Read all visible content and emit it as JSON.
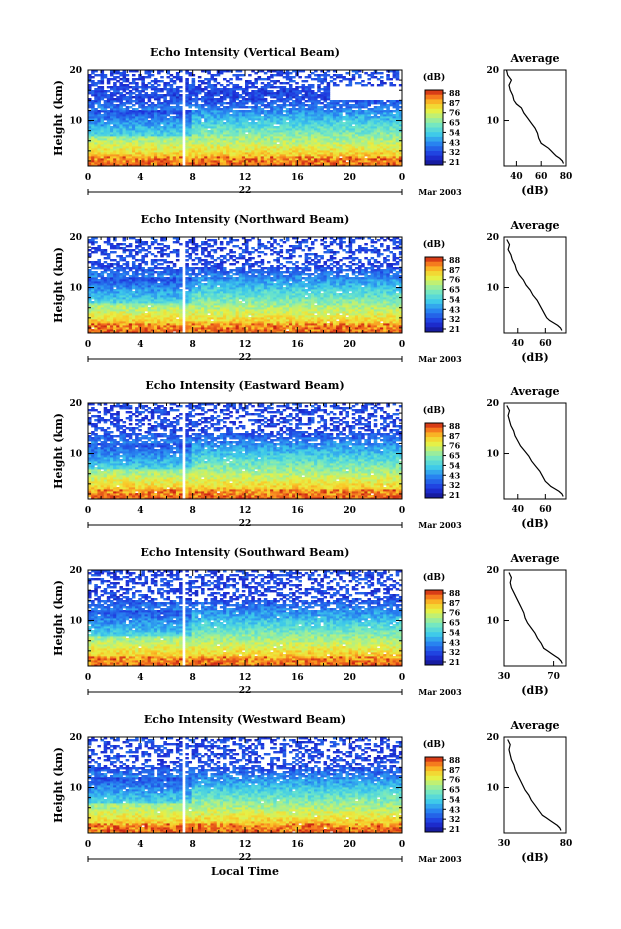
{
  "figure": {
    "xlabel": "Local Time",
    "date_label": "22",
    "month_label": "Mar 2003"
  },
  "chart_data": [
    {
      "type": "heatmap",
      "title": "Echo Intensity (Vertical Beam)",
      "xlabel": "",
      "ylabel": "Height (km)",
      "x_ticks": [
        "0",
        "4",
        "8",
        "12",
        "16",
        "20",
        "0"
      ],
      "y_ticks": [
        "10",
        "20"
      ],
      "xlim": [
        0,
        24
      ],
      "ylim": [
        1,
        20
      ],
      "colorbar": {
        "label": "(dB)",
        "ticks": [
          "88",
          "87",
          "76",
          "65",
          "54",
          "43",
          "32",
          "21"
        ],
        "range": [
          21,
          98
        ]
      },
      "gap_hour": 7.2,
      "profile": {
        "title": "Average",
        "xlabel": "(dB)",
        "x_ticks": [
          "40",
          "60",
          "80"
        ],
        "xlim": [
          30,
          80
        ],
        "y_ticks": [
          "10",
          "20"
        ],
        "points": [
          [
            78,
            1.5
          ],
          [
            77,
            2
          ],
          [
            75,
            2.5
          ],
          [
            72,
            3
          ],
          [
            70,
            3.5
          ],
          [
            68,
            4
          ],
          [
            66,
            4.5
          ],
          [
            60,
            5.5
          ],
          [
            58,
            6.5
          ],
          [
            57,
            7.5
          ],
          [
            55,
            8.5
          ],
          [
            52,
            9.5
          ],
          [
            49,
            10.5
          ],
          [
            46,
            11.5
          ],
          [
            44,
            12.5
          ],
          [
            40,
            13.3
          ],
          [
            38,
            14
          ],
          [
            37,
            15
          ],
          [
            35,
            16
          ],
          [
            34,
            17
          ],
          [
            36,
            18
          ],
          [
            33,
            19
          ],
          [
            32,
            20
          ]
        ]
      }
    },
    {
      "type": "heatmap",
      "title": "Echo Intensity (Northward Beam)",
      "xlabel": "",
      "ylabel": "Height (km)",
      "x_ticks": [
        "0",
        "4",
        "8",
        "12",
        "16",
        "20",
        "0"
      ],
      "y_ticks": [
        "10",
        "20"
      ],
      "xlim": [
        0,
        24
      ],
      "ylim": [
        1,
        20
      ],
      "colorbar": {
        "label": "(dB)",
        "ticks": [
          "88",
          "87",
          "76",
          "65",
          "54",
          "43",
          "32",
          "21"
        ],
        "range": [
          21,
          98
        ]
      },
      "gap_hour": 7.2,
      "profile": {
        "title": "Average",
        "xlabel": "(dB)",
        "x_ticks": [
          "40",
          "60"
        ],
        "xlim": [
          30,
          75
        ],
        "y_ticks": [
          "10",
          "20"
        ],
        "points": [
          [
            72,
            1.5
          ],
          [
            71,
            2
          ],
          [
            69,
            2.5
          ],
          [
            66,
            3
          ],
          [
            63,
            3.5
          ],
          [
            61,
            4
          ],
          [
            60,
            4.5
          ],
          [
            58,
            5.5
          ],
          [
            56,
            6.5
          ],
          [
            54,
            7.5
          ],
          [
            51,
            8.5
          ],
          [
            49,
            9.5
          ],
          [
            46,
            10.5
          ],
          [
            44,
            11.5
          ],
          [
            41,
            12.5
          ],
          [
            39,
            13.5
          ],
          [
            38,
            14.5
          ],
          [
            36,
            15.5
          ],
          [
            35,
            16.5
          ],
          [
            33,
            17.5
          ],
          [
            34,
            18.5
          ],
          [
            32,
            19.5
          ]
        ]
      }
    },
    {
      "type": "heatmap",
      "title": "Echo Intensity (Eastward Beam)",
      "xlabel": "",
      "ylabel": "Height (km)",
      "x_ticks": [
        "0",
        "4",
        "8",
        "12",
        "16",
        "20",
        "0"
      ],
      "y_ticks": [
        "10",
        "20"
      ],
      "xlim": [
        0,
        24
      ],
      "ylim": [
        1,
        20
      ],
      "colorbar": {
        "label": "(dB)",
        "ticks": [
          "88",
          "87",
          "76",
          "65",
          "54",
          "43",
          "32",
          "21"
        ],
        "range": [
          21,
          98
        ]
      },
      "gap_hour": 7.2,
      "profile": {
        "title": "Average",
        "xlabel": "(dB)",
        "x_ticks": [
          "40",
          "60"
        ],
        "xlim": [
          30,
          75
        ],
        "y_ticks": [
          "10",
          "20"
        ],
        "points": [
          [
            73,
            1.5
          ],
          [
            72,
            2
          ],
          [
            70,
            2.5
          ],
          [
            67,
            3
          ],
          [
            64,
            3.5
          ],
          [
            62,
            4
          ],
          [
            60,
            4.5
          ],
          [
            58,
            5.5
          ],
          [
            56,
            6.5
          ],
          [
            53,
            7.5
          ],
          [
            50,
            8.5
          ],
          [
            48,
            9.5
          ],
          [
            45,
            10.5
          ],
          [
            42,
            11.5
          ],
          [
            40,
            12.5
          ],
          [
            38,
            13.5
          ],
          [
            37,
            14.5
          ],
          [
            35,
            15.5
          ],
          [
            34,
            16.5
          ],
          [
            33,
            17.5
          ],
          [
            34,
            18.5
          ],
          [
            32,
            19.5
          ]
        ]
      }
    },
    {
      "type": "heatmap",
      "title": "Echo Intensity (Southward Beam)",
      "xlabel": "",
      "ylabel": "Height (km)",
      "x_ticks": [
        "0",
        "4",
        "8",
        "12",
        "16",
        "20",
        "0"
      ],
      "y_ticks": [
        "10",
        "20"
      ],
      "xlim": [
        0,
        24
      ],
      "ylim": [
        1,
        20
      ],
      "colorbar": {
        "label": "(dB)",
        "ticks": [
          "88",
          "87",
          "76",
          "65",
          "54",
          "43",
          "32",
          "21"
        ],
        "range": [
          21,
          98
        ]
      },
      "gap_hour": 7.2,
      "profile": {
        "title": "Average",
        "xlabel": "(dB)",
        "x_ticks": [
          "30",
          "70"
        ],
        "xlim": [
          30,
          80
        ],
        "y_ticks": [
          "10",
          "20"
        ],
        "points": [
          [
            77,
            1.5
          ],
          [
            76,
            2
          ],
          [
            74,
            2.5
          ],
          [
            71,
            3
          ],
          [
            68,
            3.5
          ],
          [
            65,
            4
          ],
          [
            62,
            4.5
          ],
          [
            60,
            5.5
          ],
          [
            57,
            6.5
          ],
          [
            55,
            7.5
          ],
          [
            52,
            8.5
          ],
          [
            49,
            9.5
          ],
          [
            47,
            10.5
          ],
          [
            46,
            11.5
          ],
          [
            44,
            12.5
          ],
          [
            42,
            13.5
          ],
          [
            40,
            14.5
          ],
          [
            38,
            15.5
          ],
          [
            36,
            16.5
          ],
          [
            35,
            17.5
          ],
          [
            36,
            18.5
          ],
          [
            34,
            19.5
          ]
        ]
      }
    },
    {
      "type": "heatmap",
      "title": "Echo Intensity (Westward Beam)",
      "xlabel": "Local Time",
      "ylabel": "Height (km)",
      "x_ticks": [
        "0",
        "4",
        "8",
        "12",
        "16",
        "20",
        "0"
      ],
      "y_ticks": [
        "10",
        "20"
      ],
      "xlim": [
        0,
        24
      ],
      "ylim": [
        1,
        20
      ],
      "colorbar": {
        "label": "(dB)",
        "ticks": [
          "88",
          "87",
          "76",
          "65",
          "54",
          "43",
          "32",
          "21"
        ],
        "range": [
          21,
          98
        ]
      },
      "gap_hour": 7.2,
      "profile": {
        "title": "Average",
        "xlabel": "(dB)",
        "x_ticks": [
          "30",
          "80"
        ],
        "xlim": [
          30,
          80
        ],
        "y_ticks": [
          "10",
          "20"
        ],
        "points": [
          [
            76,
            1.5
          ],
          [
            75,
            2
          ],
          [
            73,
            2.5
          ],
          [
            70,
            3
          ],
          [
            67,
            3.5
          ],
          [
            64,
            4
          ],
          [
            61,
            4.5
          ],
          [
            58,
            5.5
          ],
          [
            55,
            6.5
          ],
          [
            52,
            7.5
          ],
          [
            50,
            8.5
          ],
          [
            47,
            9.5
          ],
          [
            45,
            10.5
          ],
          [
            43,
            11.5
          ],
          [
            41,
            12.5
          ],
          [
            39,
            13.5
          ],
          [
            38,
            14.5
          ],
          [
            36,
            15.5
          ],
          [
            35,
            16.5
          ],
          [
            34,
            17.5
          ],
          [
            35,
            18.5
          ],
          [
            33,
            19.5
          ]
        ]
      }
    }
  ]
}
